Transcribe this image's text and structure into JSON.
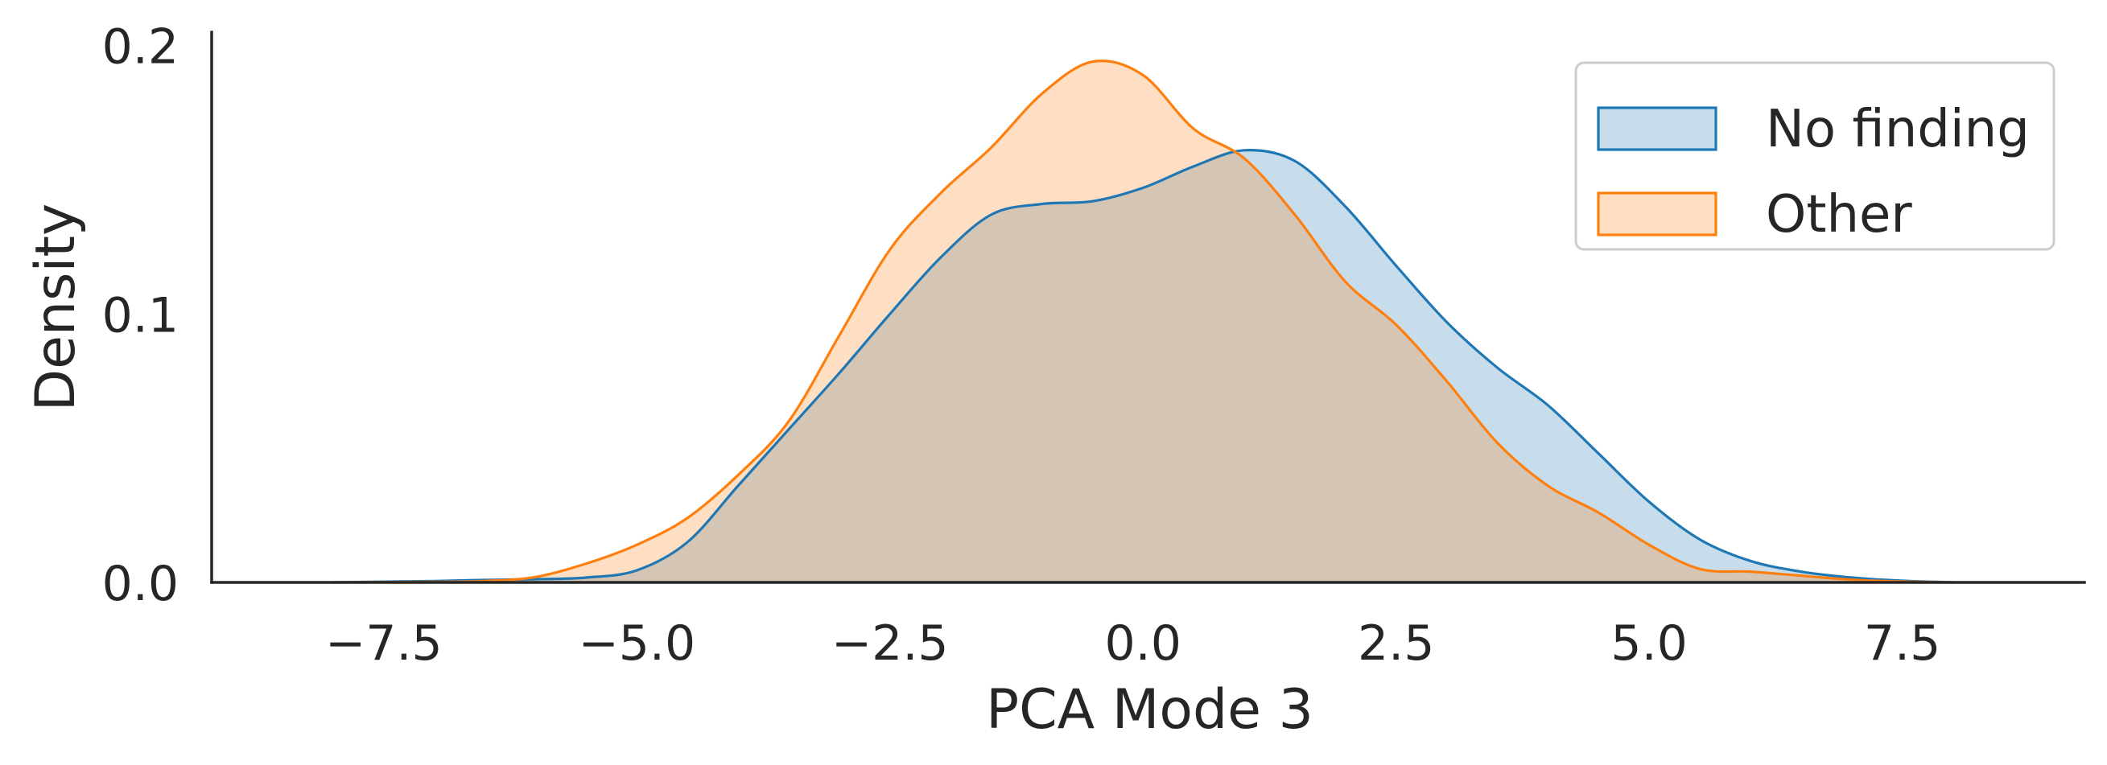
{
  "chart_data": {
    "type": "area",
    "subtype": "kde-density",
    "title": "",
    "xlabel": "PCA Mode 3",
    "ylabel": "Density",
    "xlim": [
      -9.2,
      9.3
    ],
    "ylim": [
      0,
      0.205
    ],
    "xticks": [
      -7.5,
      -5.0,
      -2.5,
      0.0,
      2.5,
      5.0,
      7.5
    ],
    "xtick_labels": [
      "−7.5",
      "−5.0",
      "−2.5",
      "0.0",
      "2.5",
      "5.0",
      "7.5"
    ],
    "yticks": [
      0.0,
      0.1,
      0.2
    ],
    "ytick_labels": [
      "0.0",
      "0.1",
      "0.2"
    ],
    "grid": false,
    "legend_position": "top-right",
    "series": [
      {
        "name": "No finding",
        "color": "#1f77b4",
        "x": [
          -8.0,
          -7.0,
          -6.5,
          -6.0,
          -5.5,
          -5.0,
          -4.5,
          -4.0,
          -3.5,
          -3.0,
          -2.5,
          -2.0,
          -1.5,
          -1.0,
          -0.5,
          0.0,
          0.5,
          1.0,
          1.5,
          2.0,
          2.5,
          3.0,
          3.5,
          4.0,
          4.5,
          5.0,
          5.5,
          6.0,
          6.5,
          7.0,
          7.5,
          8.0
        ],
        "y": [
          0.0,
          0.0005,
          0.0009,
          0.0012,
          0.0018,
          0.0045,
          0.015,
          0.036,
          0.057,
          0.078,
          0.1,
          0.121,
          0.137,
          0.141,
          0.142,
          0.147,
          0.155,
          0.161,
          0.157,
          0.14,
          0.118,
          0.097,
          0.08,
          0.066,
          0.048,
          0.03,
          0.016,
          0.008,
          0.004,
          0.0018,
          0.0006,
          0.0
        ]
      },
      {
        "name": "Other",
        "color": "#ff7f0e",
        "x": [
          -8.0,
          -7.0,
          -6.5,
          -6.0,
          -5.5,
          -5.0,
          -4.5,
          -4.0,
          -3.5,
          -3.0,
          -2.5,
          -2.0,
          -1.5,
          -1.0,
          -0.5,
          0.0,
          0.5,
          1.0,
          1.5,
          2.0,
          2.5,
          3.0,
          3.5,
          4.0,
          4.5,
          5.0,
          5.5,
          6.0,
          6.5,
          7.0,
          7.5,
          8.0
        ],
        "y": [
          0.0,
          0.0002,
          0.0005,
          0.002,
          0.007,
          0.014,
          0.024,
          0.04,
          0.06,
          0.092,
          0.124,
          0.145,
          0.162,
          0.182,
          0.194,
          0.189,
          0.169,
          0.158,
          0.137,
          0.112,
          0.096,
          0.075,
          0.052,
          0.036,
          0.026,
          0.014,
          0.005,
          0.004,
          0.0025,
          0.001,
          0.0003,
          0.0
        ]
      }
    ]
  }
}
